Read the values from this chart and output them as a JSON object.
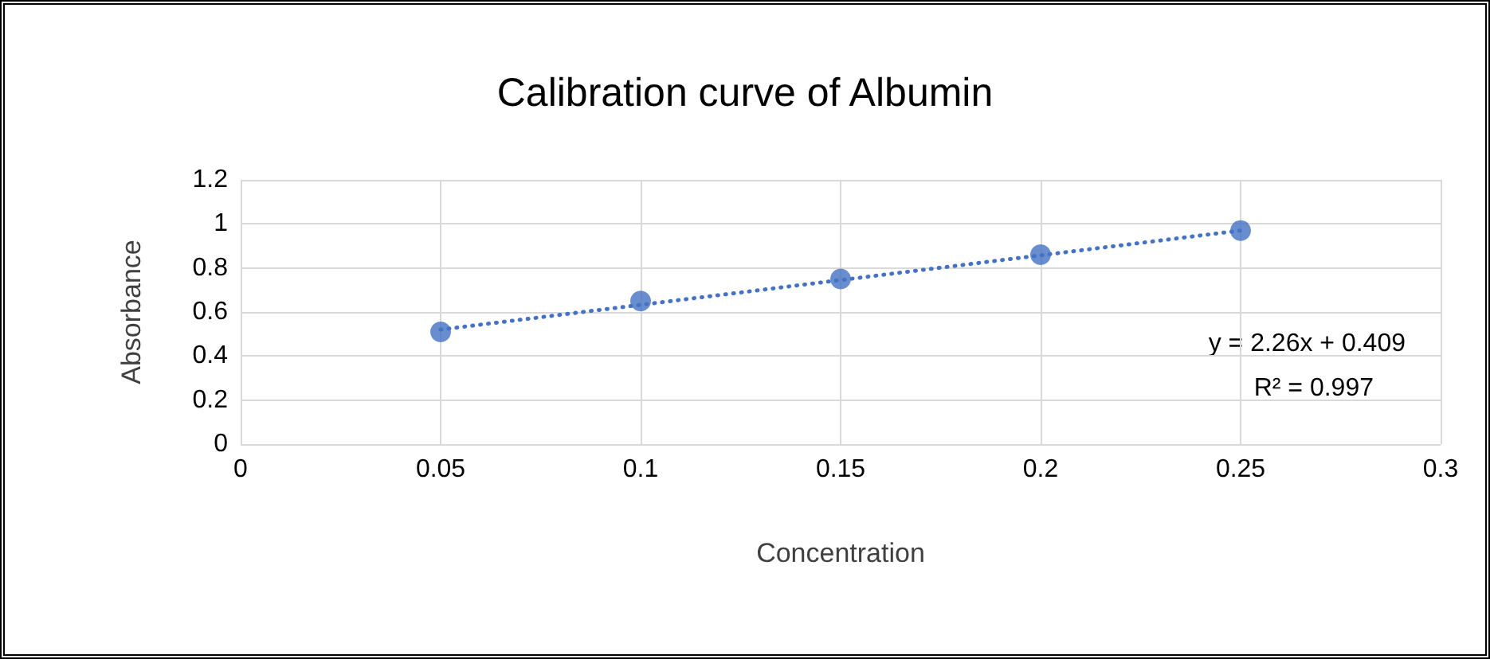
{
  "chart_data": {
    "type": "scatter",
    "title": "Calibration curve of Albumin",
    "xlabel": "Concentration",
    "ylabel": "Absorbance",
    "series": [
      {
        "color": "#4472c4",
        "x": [
          0.05,
          0.1,
          0.15,
          0.2,
          0.25
        ],
        "values": [
          0.51,
          0.65,
          0.75,
          0.86,
          0.97
        ],
        "marker": "circle"
      },
      {
        "type": "line",
        "color": "#4472c4",
        "x": [
          0.05,
          0.25
        ],
        "values": [
          0.52,
          0.97
        ],
        "line_style": "dotted",
        "marker": "none"
      }
    ],
    "xlim": [
      0,
      0.3
    ],
    "xticks": [
      0,
      0.05,
      0.1,
      0.15,
      0.2,
      0.25,
      0.3
    ],
    "ylim": [
      0,
      1.2
    ],
    "yticks": [
      0,
      0.2,
      0.4,
      0.6,
      0.8,
      1,
      1.2
    ],
    "grid": true,
    "annotations": [
      "y = 2.26x + 0.409",
      "R² = 0.997"
    ]
  }
}
